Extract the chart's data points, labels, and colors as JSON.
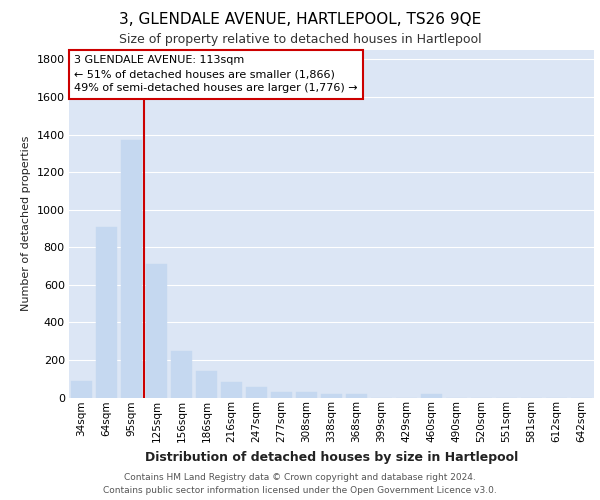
{
  "title": "3, GLENDALE AVENUE, HARTLEPOOL, TS26 9QE",
  "subtitle": "Size of property relative to detached houses in Hartlepool",
  "xlabel": "Distribution of detached houses by size in Hartlepool",
  "ylabel": "Number of detached properties",
  "footnote1": "Contains HM Land Registry data © Crown copyright and database right 2024.",
  "footnote2": "Contains public sector information licensed under the Open Government Licence v3.0.",
  "bar_color": "#c5d8f0",
  "bar_edge_color": "#c5d8f0",
  "background_color": "#dce6f5",
  "categories": [
    "34sqm",
    "64sqm",
    "95sqm",
    "125sqm",
    "156sqm",
    "186sqm",
    "216sqm",
    "247sqm",
    "277sqm",
    "308sqm",
    "338sqm",
    "368sqm",
    "399sqm",
    "429sqm",
    "460sqm",
    "490sqm",
    "520sqm",
    "551sqm",
    "581sqm",
    "612sqm",
    "642sqm"
  ],
  "values": [
    90,
    910,
    1370,
    710,
    250,
    140,
    85,
    55,
    30,
    30,
    20,
    20,
    0,
    0,
    20,
    0,
    0,
    0,
    0,
    0,
    0
  ],
  "property_label": "3 GLENDALE AVENUE: 113sqm",
  "annotation_line1": "← 51% of detached houses are smaller (1,866)",
  "annotation_line2": "49% of semi-detached houses are larger (1,776) →",
  "red_line_x": 2.5,
  "ylim": [
    0,
    1850
  ],
  "yticks": [
    0,
    200,
    400,
    600,
    800,
    1000,
    1200,
    1400,
    1600,
    1800
  ],
  "annotation_box_color": "#cc0000",
  "red_line_color": "#cc0000",
  "grid_color": "#ffffff",
  "title_fontsize": 11,
  "subtitle_fontsize": 9,
  "ylabel_fontsize": 8,
  "xlabel_fontsize": 9,
  "footnote_fontsize": 6.5,
  "tick_fontsize": 8,
  "xtick_fontsize": 7.5
}
